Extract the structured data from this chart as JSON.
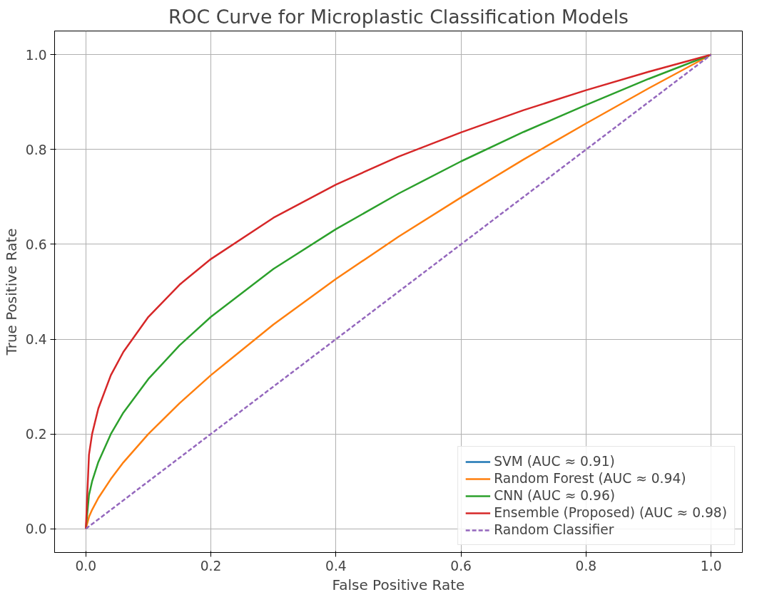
{
  "chart_data": {
    "type": "line",
    "title": "ROC Curve for Microplastic Classification Models",
    "xlabel": "False Positive Rate",
    "ylabel": "True Positive Rate",
    "x": [
      0,
      0.005,
      0.01,
      0.02,
      0.04,
      0.06,
      0.1,
      0.15,
      0.2,
      0.3,
      0.4,
      0.5,
      0.6,
      0.7,
      0.8,
      0.9,
      1.0
    ],
    "series": [
      {
        "name": "SVM (AUC ≈ 0.91)",
        "color": "#1f77b4",
        "values": [
          null,
          null,
          null,
          null,
          null,
          null,
          null,
          null,
          null,
          null,
          null,
          null,
          null,
          null,
          null,
          null,
          null
        ]
      },
      {
        "name": "Random Forest (AUC ≈ 0.94)",
        "color": "#ff7f0e",
        "values": [
          0,
          0.025,
          0.04,
          0.065,
          0.105,
          0.14,
          0.2,
          0.265,
          0.324,
          0.431,
          0.527,
          0.616,
          0.699,
          0.779,
          0.855,
          0.929,
          1.0
        ]
      },
      {
        "name": "CNN (AUC ≈ 0.96)",
        "color": "#2ca02c",
        "values": [
          0,
          0.071,
          0.1,
          0.141,
          0.2,
          0.245,
          0.316,
          0.387,
          0.447,
          0.548,
          0.632,
          0.707,
          0.775,
          0.837,
          0.894,
          0.949,
          1.0
        ]
      },
      {
        "name": "Ensemble (Proposed) (AUC ≈ 0.98)",
        "color": "#d62728",
        "values": [
          0,
          0.156,
          0.2,
          0.254,
          0.324,
          0.373,
          0.447,
          0.515,
          0.569,
          0.656,
          0.726,
          0.785,
          0.836,
          0.883,
          0.925,
          0.964,
          1.0
        ]
      },
      {
        "name": "Random Classifier",
        "color": "#9467bd",
        "line_style": "dashed",
        "x": [
          0,
          1
        ],
        "values": [
          0,
          1
        ]
      }
    ],
    "xlim": [
      -0.05,
      1.05
    ],
    "ylim": [
      -0.05,
      1.05
    ],
    "xticks": [
      {
        "value": 0,
        "label": "0.0"
      },
      {
        "value": 0.2,
        "label": "0.2"
      },
      {
        "value": 0.4,
        "label": "0.4"
      },
      {
        "value": 0.6,
        "label": "0.6"
      },
      {
        "value": 0.8,
        "label": "0.8"
      },
      {
        "value": 1,
        "label": "1.0"
      }
    ],
    "yticks": [
      {
        "value": 0,
        "label": "0.0"
      },
      {
        "value": 0.2,
        "label": "0.2"
      },
      {
        "value": 0.4,
        "label": "0.4"
      },
      {
        "value": 0.6,
        "label": "0.6"
      },
      {
        "value": 0.8,
        "label": "0.8"
      },
      {
        "value": 1,
        "label": "1.0"
      }
    ],
    "grid": true,
    "legend": "bottom right"
  }
}
